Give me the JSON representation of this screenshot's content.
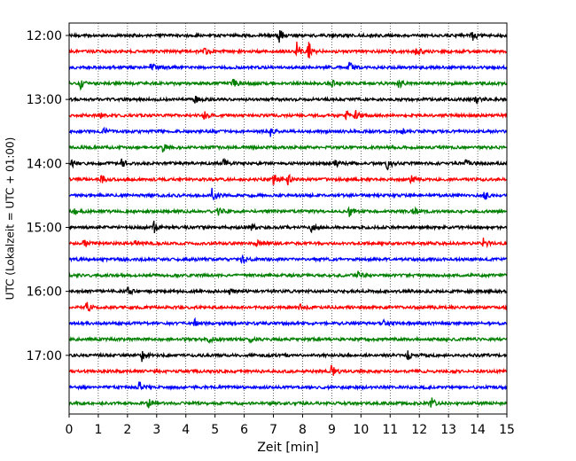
{
  "chart_data": {
    "type": "line",
    "subtype": "helicorder",
    "xlabel": "Zeit  [min]",
    "ylabel": "UTC (Lokalzeit = UTC + 01:00)",
    "xlim": [
      0,
      15
    ],
    "x_ticks": [
      "0",
      "1",
      "2",
      "3",
      "4",
      "5",
      "6",
      "7",
      "8",
      "9",
      "10",
      "11",
      "12",
      "13",
      "14",
      "15"
    ],
    "y_hour_labels": [
      "12:00",
      "13:00",
      "14:00",
      "15:00",
      "16:00",
      "17:00"
    ],
    "grid": "vertical dotted at each minute",
    "colors": [
      "#000000",
      "#ff0000",
      "#0000ff",
      "#008000"
    ],
    "trace_minutes": 15,
    "traces": [
      {
        "start": "12:00",
        "color_index": 0,
        "events": [
          {
            "t": 7.2,
            "amp": 0.9
          },
          {
            "t": 13.8,
            "amp": 1.0
          }
        ]
      },
      {
        "start": "12:15",
        "color_index": 1,
        "events": [
          {
            "t": 4.6,
            "amp": 0.8
          },
          {
            "t": 7.8,
            "amp": 1.2
          },
          {
            "t": 8.2,
            "amp": 1.6
          },
          {
            "t": 11.9,
            "amp": 0.9
          }
        ]
      },
      {
        "start": "12:30",
        "color_index": 2,
        "events": [
          {
            "t": 2.8,
            "amp": 0.6
          },
          {
            "t": 9.6,
            "amp": 0.8
          }
        ]
      },
      {
        "start": "12:45",
        "color_index": 3,
        "events": [
          {
            "t": 0.4,
            "amp": 0.7
          },
          {
            "t": 5.6,
            "amp": 0.7
          },
          {
            "t": 9.0,
            "amp": 0.6
          },
          {
            "t": 11.3,
            "amp": 0.6
          }
        ]
      },
      {
        "start": "13:00",
        "color_index": 0,
        "events": [
          {
            "t": 4.3,
            "amp": 0.6
          },
          {
            "t": 13.9,
            "amp": 0.7
          }
        ]
      },
      {
        "start": "13:15",
        "color_index": 1,
        "events": [
          {
            "t": 1.0,
            "amp": 0.6
          },
          {
            "t": 4.6,
            "amp": 0.6
          },
          {
            "t": 9.5,
            "amp": 0.8
          },
          {
            "t": 9.8,
            "amp": 0.7
          }
        ]
      },
      {
        "start": "13:30",
        "color_index": 2,
        "events": [
          {
            "t": 1.2,
            "amp": 0.5
          },
          {
            "t": 6.9,
            "amp": 0.6
          },
          {
            "t": 11.4,
            "amp": 0.5
          }
        ]
      },
      {
        "start": "13:45",
        "color_index": 3,
        "events": [
          {
            "t": 3.2,
            "amp": 0.7
          }
        ]
      },
      {
        "start": "14:00",
        "color_index": 0,
        "events": [
          {
            "t": 0.1,
            "amp": 0.6
          },
          {
            "t": 1.8,
            "amp": 0.5
          },
          {
            "t": 5.3,
            "amp": 0.6
          },
          {
            "t": 9.1,
            "amp": 0.5
          },
          {
            "t": 10.9,
            "amp": 1.0
          },
          {
            "t": 13.6,
            "amp": 0.6
          }
        ]
      },
      {
        "start": "14:15",
        "color_index": 1,
        "events": [
          {
            "t": 1.1,
            "amp": 0.6
          },
          {
            "t": 7.0,
            "amp": 0.9
          },
          {
            "t": 7.5,
            "amp": 0.7
          },
          {
            "t": 11.7,
            "amp": 0.6
          }
        ]
      },
      {
        "start": "14:30",
        "color_index": 2,
        "events": [
          {
            "t": 4.9,
            "amp": 1.0
          },
          {
            "t": 14.2,
            "amp": 0.8
          }
        ]
      },
      {
        "start": "14:45",
        "color_index": 3,
        "events": [
          {
            "t": 0.2,
            "amp": 0.6
          },
          {
            "t": 5.1,
            "amp": 0.9
          },
          {
            "t": 9.6,
            "amp": 0.6
          },
          {
            "t": 11.8,
            "amp": 0.5
          }
        ]
      },
      {
        "start": "15:00",
        "color_index": 0,
        "events": [
          {
            "t": 2.9,
            "amp": 0.8
          },
          {
            "t": 6.2,
            "amp": 0.6
          },
          {
            "t": 8.3,
            "amp": 0.6
          }
        ]
      },
      {
        "start": "15:15",
        "color_index": 1,
        "events": [
          {
            "t": 0.5,
            "amp": 0.7
          },
          {
            "t": 2.2,
            "amp": 0.5
          },
          {
            "t": 6.4,
            "amp": 0.6
          },
          {
            "t": 14.2,
            "amp": 0.7
          }
        ]
      },
      {
        "start": "15:30",
        "color_index": 2,
        "events": [
          {
            "t": 5.9,
            "amp": 0.8
          }
        ]
      },
      {
        "start": "15:45",
        "color_index": 3,
        "events": [
          {
            "t": 9.9,
            "amp": 0.5
          }
        ]
      },
      {
        "start": "16:00",
        "color_index": 0,
        "events": [
          {
            "t": 2.0,
            "amp": 0.6
          },
          {
            "t": 5.5,
            "amp": 0.5
          }
        ]
      },
      {
        "start": "16:15",
        "color_index": 1,
        "events": [
          {
            "t": 0.6,
            "amp": 0.7
          },
          {
            "t": 7.9,
            "amp": 0.5
          }
        ]
      },
      {
        "start": "16:30",
        "color_index": 2,
        "events": [
          {
            "t": 4.3,
            "amp": 0.5
          },
          {
            "t": 10.8,
            "amp": 0.9
          }
        ]
      },
      {
        "start": "16:45",
        "color_index": 3,
        "events": [
          {
            "t": 4.8,
            "amp": 0.5
          },
          {
            "t": 6.2,
            "amp": 0.4
          }
        ]
      },
      {
        "start": "17:00",
        "color_index": 0,
        "events": [
          {
            "t": 2.5,
            "amp": 0.9
          },
          {
            "t": 11.6,
            "amp": 0.6
          }
        ]
      },
      {
        "start": "17:15",
        "color_index": 1,
        "events": [
          {
            "t": 9.0,
            "amp": 1.0
          }
        ]
      },
      {
        "start": "17:30",
        "color_index": 2,
        "events": [
          {
            "t": 2.4,
            "amp": 0.8
          }
        ]
      },
      {
        "start": "17:45",
        "color_index": 3,
        "events": [
          {
            "t": 2.7,
            "amp": 0.8
          },
          {
            "t": 12.4,
            "amp": 0.9
          }
        ]
      }
    ]
  }
}
